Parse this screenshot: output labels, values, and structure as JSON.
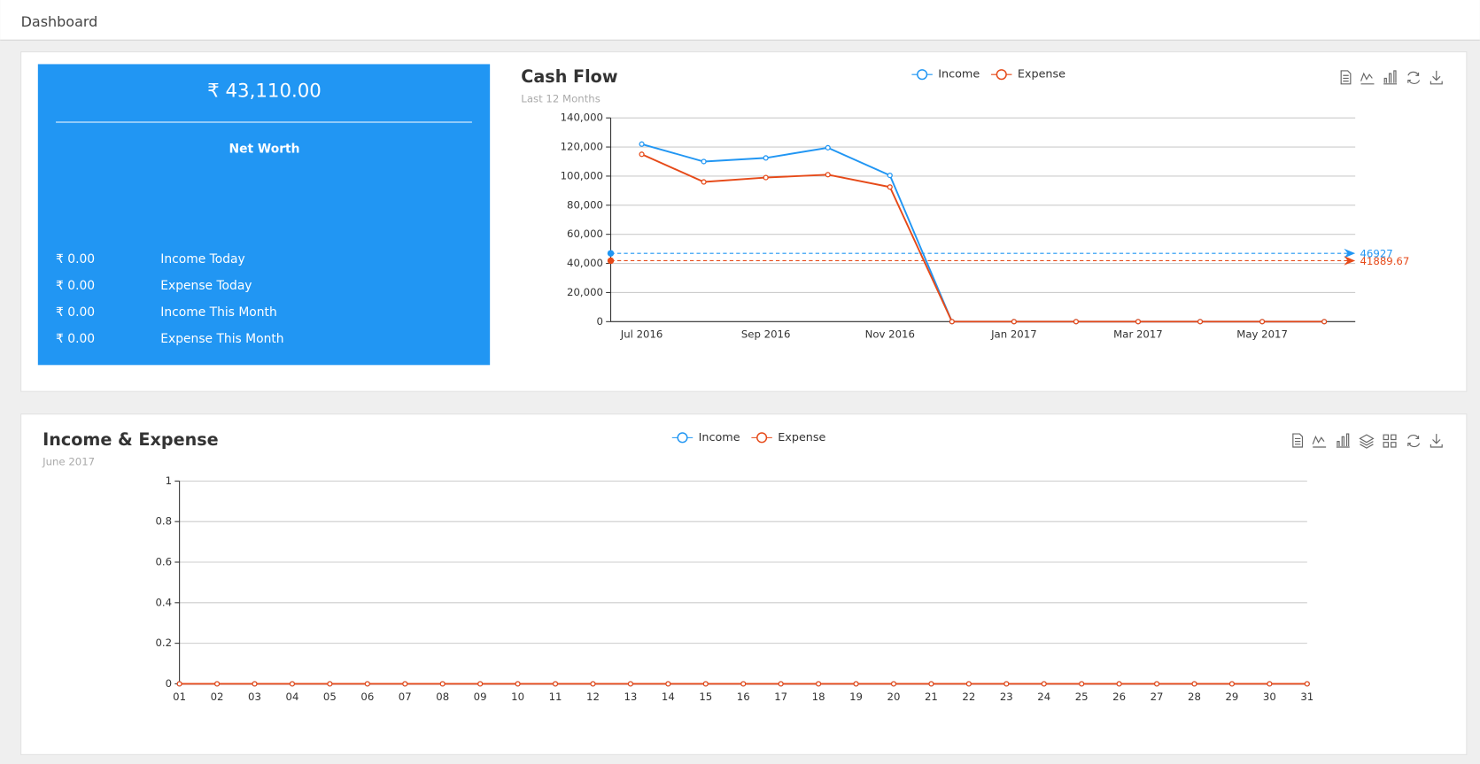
{
  "header": {
    "title": "Dashboard"
  },
  "summary": {
    "net_worth": "₹ 43,110.00",
    "net_worth_label": "Net Worth",
    "rows": [
      {
        "amount": "₹ 0.00",
        "label": "Income Today"
      },
      {
        "amount": "₹ 0.00",
        "label": "Expense Today"
      },
      {
        "amount": "₹ 0.00",
        "label": "Income This Month"
      },
      {
        "amount": "₹ 0.00",
        "label": "Expense This Month"
      }
    ]
  },
  "chart_data": [
    {
      "type": "line",
      "title": "Cash Flow",
      "subtitle": "Last 12 Months",
      "categories": [
        "Jul 2016",
        null,
        "Sep 2016",
        null,
        "Nov 2016",
        null,
        "Jan 2017",
        null,
        "Mar 2017",
        null,
        "May 2017",
        null
      ],
      "series": [
        {
          "name": "Income",
          "color": "#2196f3",
          "values": [
            122000,
            110000,
            112500,
            119500,
            100500,
            0,
            0,
            0,
            0,
            0,
            0,
            0
          ],
          "average": 46927
        },
        {
          "name": "Expense",
          "color": "#e64a19",
          "values": [
            115000,
            96000,
            99000,
            101000,
            92500,
            0,
            0,
            0,
            0,
            0,
            0,
            0
          ],
          "average": 41889.67
        }
      ],
      "ylim": [
        0,
        140000
      ],
      "yticks": [
        0,
        {
          "value": 20000,
          "label": "20,000"
        },
        {
          "value": 40000,
          "label": "40,000"
        },
        {
          "value": 60000,
          "label": "60,000"
        },
        {
          "value": 80000,
          "label": "80,000"
        },
        {
          "value": 100000,
          "label": "100,000"
        },
        {
          "value": 120000,
          "label": "120,000"
        },
        {
          "value": 140000,
          "label": "140,000"
        }
      ],
      "grid": true
    },
    {
      "type": "line",
      "title": "Income & Expense",
      "subtitle": "June 2017",
      "categories": [
        "01",
        "02",
        "03",
        "04",
        "05",
        "06",
        "07",
        "08",
        "09",
        "10",
        "11",
        "12",
        "13",
        "14",
        "15",
        "16",
        "17",
        "18",
        "19",
        "20",
        "21",
        "22",
        "23",
        "24",
        "25",
        "26",
        "27",
        "28",
        "29",
        "30",
        "31"
      ],
      "series": [
        {
          "name": "Income",
          "color": "#2196f3",
          "values": [
            0,
            0,
            0,
            0,
            0,
            0,
            0,
            0,
            0,
            0,
            0,
            0,
            0,
            0,
            0,
            0,
            0,
            0,
            0,
            0,
            0,
            0,
            0,
            0,
            0,
            0,
            0,
            0,
            0,
            0,
            0
          ]
        },
        {
          "name": "Expense",
          "color": "#e64a19",
          "values": [
            0,
            0,
            0,
            0,
            0,
            0,
            0,
            0,
            0,
            0,
            0,
            0,
            0,
            0,
            0,
            0,
            0,
            0,
            0,
            0,
            0,
            0,
            0,
            0,
            0,
            0,
            0,
            0,
            0,
            0,
            0
          ]
        }
      ],
      "ylim": [
        0,
        1
      ],
      "yticks": [
        0,
        0.2,
        0.4,
        0.6,
        0.8,
        1
      ],
      "grid": true
    }
  ]
}
